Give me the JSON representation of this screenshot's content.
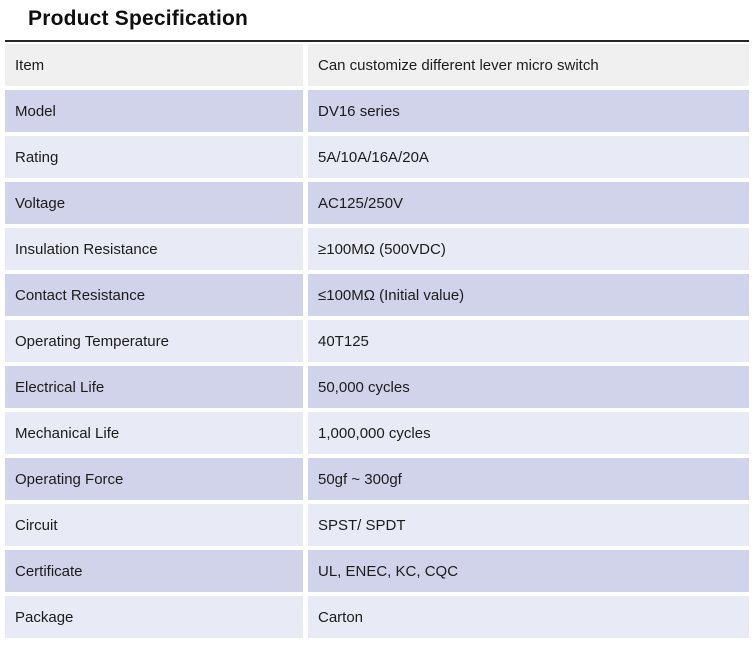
{
  "page": {
    "title": "Product Specification"
  },
  "table": {
    "rows": [
      {
        "label": "Item",
        "value": "Can customize different lever micro switch"
      },
      {
        "label": "Model",
        "value": "DV16 series"
      },
      {
        "label": "Rating",
        "value": "5A/10A/16A/20A"
      },
      {
        "label": "Voltage",
        "value": "AC125/250V"
      },
      {
        "label": "Insulation Resistance",
        "value": "≥100MΩ (500VDC)"
      },
      {
        "label": "Contact Resistance",
        "value": "≤100MΩ (Initial value)"
      },
      {
        "label": "Operating Temperature",
        "value": "40T125"
      },
      {
        "label": "Electrical Life",
        "value": "50,000 cycles"
      },
      {
        "label": "Mechanical Life",
        "value": "1,000,000 cycles"
      },
      {
        "label": "Operating Force",
        "value": "50gf ~ 300gf"
      },
      {
        "label": "Circuit",
        "value": "SPST/ SPDT"
      },
      {
        "label": "Certificate",
        "value": "UL, ENEC, KC, CQC"
      },
      {
        "label": "Package",
        "value": "Carton"
      }
    ],
    "colors": {
      "header_row_bg": "#f0f0f0",
      "row_dark_bg": "#d0d3e9",
      "row_light_bg": "#e8eaf6",
      "divider": "#ffffff",
      "top_border": "#262626"
    }
  }
}
